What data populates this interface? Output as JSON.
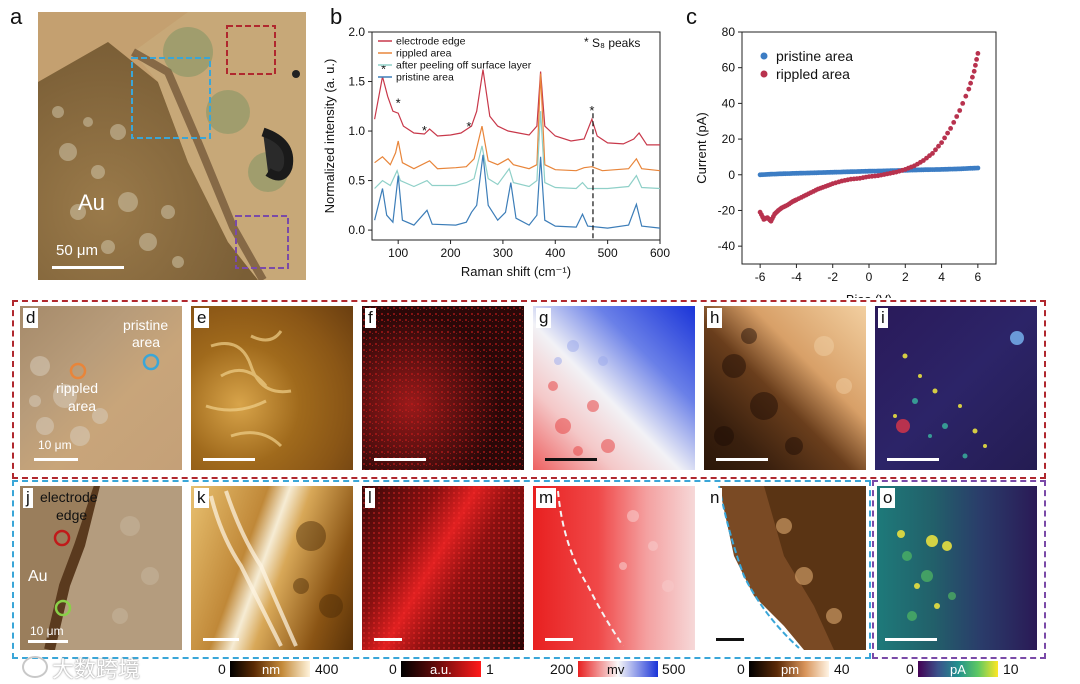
{
  "panel_letters": {
    "a": "a",
    "b": "b",
    "c": "c",
    "d": "d",
    "e": "e",
    "f": "f",
    "g": "g",
    "h": "h",
    "i": "i",
    "j": "j",
    "k": "k",
    "l": "l",
    "m": "m",
    "n": "n",
    "o": "o"
  },
  "panel_a": {
    "label_au": "Au",
    "scale": "50 μm"
  },
  "panel_d": {
    "pristine": "pristine",
    "area1": "area",
    "rippled": "rippled",
    "area2": "area",
    "scale": "10 μm"
  },
  "panel_j": {
    "electrode": "electrode",
    "edge": "edge",
    "label_au": "Au",
    "scale": "10 μm"
  },
  "colorbars": [
    {
      "min": "0",
      "unit": "nm",
      "max": "400"
    },
    {
      "min": "0",
      "unit": "a.u.",
      "max": "1"
    },
    {
      "min": "200",
      "unit": "mv",
      "max": "500"
    },
    {
      "min": "0",
      "unit": "pm",
      "max": "40"
    },
    {
      "min": "0",
      "unit": "pA",
      "max": "10"
    }
  ],
  "watermark": "大数跨境",
  "colors": {
    "red_box": "#b0282e",
    "cyan_box": "#3aa6d8",
    "purple_box": "#7a4aa8",
    "pristine": "#3c7dc4",
    "rippled": "#b8324e"
  },
  "chart_data": [
    {
      "type": "line",
      "panel": "b",
      "xlabel": "Raman shift (cm⁻¹)",
      "ylabel": "Normalized intensity (a. u.)",
      "xlim": [
        50,
        600
      ],
      "ylim": [
        -0.1,
        2.0
      ],
      "xticks": [
        "100",
        "200",
        "300",
        "400",
        "500",
        "600"
      ],
      "yticks": [
        "0.0",
        "0.5",
        "1.0",
        "1.5",
        "2.0"
      ],
      "legend_position": "top-left",
      "annotation": "S₈ peaks",
      "annotation_marker": "*",
      "series": [
        {
          "name": "electrode edge",
          "color": "#c8384a",
          "baseline": 0.98,
          "points": [
            [
              55,
              1.12
            ],
            [
              70,
              1.55
            ],
            [
              80,
              1.35
            ],
            [
              90,
              1.2
            ],
            [
              100,
              1.18
            ],
            [
              110,
              1.05
            ],
            [
              130,
              0.98
            ],
            [
              150,
              0.97
            ],
            [
              160,
              1.02
            ],
            [
              175,
              0.95
            ],
            [
              200,
              0.96
            ],
            [
              220,
              0.98
            ],
            [
              240,
              1.05
            ],
            [
              250,
              1.2
            ],
            [
              262,
              1.62
            ],
            [
              275,
              1.15
            ],
            [
              290,
              1.05
            ],
            [
              310,
              1.0
            ],
            [
              330,
              0.98
            ],
            [
              350,
              0.96
            ],
            [
              365,
              1.05
            ],
            [
              372,
              1.6
            ],
            [
              380,
              1.05
            ],
            [
              400,
              0.95
            ],
            [
              430,
              0.9
            ],
            [
              455,
              0.92
            ],
            [
              470,
              1.12
            ],
            [
              480,
              0.95
            ],
            [
              500,
              0.88
            ],
            [
              530,
              0.87
            ],
            [
              550,
              0.92
            ],
            [
              560,
              0.98
            ],
            [
              575,
              0.86
            ],
            [
              600,
              0.86
            ]
          ]
        },
        {
          "name": "rippled area",
          "color": "#e8853a",
          "baseline": 0.62,
          "points": [
            [
              55,
              0.68
            ],
            [
              70,
              0.74
            ],
            [
              85,
              0.66
            ],
            [
              95,
              0.78
            ],
            [
              100,
              0.9
            ],
            [
              108,
              0.68
            ],
            [
              130,
              0.62
            ],
            [
              160,
              0.7
            ],
            [
              175,
              0.62
            ],
            [
              210,
              0.63
            ],
            [
              230,
              0.64
            ],
            [
              245,
              0.72
            ],
            [
              260,
              1.05
            ],
            [
              272,
              0.7
            ],
            [
              290,
              0.66
            ],
            [
              310,
              0.72
            ],
            [
              320,
              0.66
            ],
            [
              350,
              0.62
            ],
            [
              365,
              0.66
            ],
            [
              372,
              1.58
            ],
            [
              380,
              0.66
            ],
            [
              400,
              0.61
            ],
            [
              440,
              0.6
            ],
            [
              455,
              0.63
            ],
            [
              470,
              0.64
            ],
            [
              490,
              0.6
            ],
            [
              540,
              0.62
            ],
            [
              555,
              0.72
            ],
            [
              565,
              0.62
            ],
            [
              600,
              0.6
            ]
          ]
        },
        {
          "name": "after peeling off surface layer",
          "color": "#8fd0c8",
          "baseline": 0.43,
          "points": [
            [
              55,
              0.42
            ],
            [
              70,
              0.5
            ],
            [
              85,
              0.45
            ],
            [
              98,
              0.6
            ],
            [
              104,
              0.5
            ],
            [
              130,
              0.44
            ],
            [
              155,
              0.5
            ],
            [
              165,
              0.45
            ],
            [
              210,
              0.45
            ],
            [
              230,
              0.48
            ],
            [
              245,
              0.52
            ],
            [
              260,
              0.85
            ],
            [
              272,
              0.52
            ],
            [
              290,
              0.46
            ],
            [
              312,
              0.62
            ],
            [
              320,
              0.48
            ],
            [
              350,
              0.44
            ],
            [
              365,
              0.5
            ],
            [
              372,
              1.2
            ],
            [
              380,
              0.48
            ],
            [
              400,
              0.43
            ],
            [
              440,
              0.42
            ],
            [
              452,
              0.48
            ],
            [
              462,
              0.42
            ],
            [
              500,
              0.42
            ],
            [
              540,
              0.44
            ],
            [
              555,
              0.55
            ],
            [
              565,
              0.43
            ],
            [
              600,
              0.42
            ]
          ]
        },
        {
          "name": "pristine area",
          "color": "#3c7db8",
          "baseline": 0.05,
          "points": [
            [
              55,
              0.1
            ],
            [
              70,
              0.42
            ],
            [
              78,
              0.15
            ],
            [
              90,
              0.08
            ],
            [
              100,
              0.55
            ],
            [
              108,
              0.1
            ],
            [
              130,
              0.05
            ],
            [
              155,
              0.2
            ],
            [
              165,
              0.06
            ],
            [
              210,
              0.05
            ],
            [
              230,
              0.08
            ],
            [
              240,
              0.18
            ],
            [
              250,
              0.25
            ],
            [
              262,
              0.76
            ],
            [
              272,
              0.25
            ],
            [
              290,
              0.1
            ],
            [
              305,
              0.18
            ],
            [
              315,
              0.48
            ],
            [
              325,
              0.12
            ],
            [
              350,
              0.05
            ],
            [
              365,
              0.15
            ],
            [
              372,
              0.74
            ],
            [
              380,
              0.1
            ],
            [
              400,
              0.04
            ],
            [
              440,
              0.03
            ],
            [
              452,
              0.16
            ],
            [
              462,
              0.04
            ],
            [
              500,
              0.02
            ],
            [
              540,
              0.05
            ],
            [
              555,
              0.26
            ],
            [
              565,
              0.04
            ],
            [
              600,
              0.02
            ]
          ]
        }
      ],
      "s8_markers": [
        [
          72,
          1.62
        ],
        [
          100,
          1.28
        ],
        [
          150,
          1.0
        ],
        [
          235,
          1.04
        ],
        [
          470,
          1.2
        ]
      ],
      "dashed_line_x": 472
    },
    {
      "type": "scatter",
      "panel": "c",
      "xlabel": "Bias (V)",
      "ylabel": "Current (pA)",
      "xlim": [
        -7,
        7
      ],
      "ylim": [
        -50,
        80
      ],
      "xticks": [
        "-6",
        "-4",
        "-2",
        "0",
        "2",
        "4",
        "6"
      ],
      "yticks": [
        "-40",
        "-20",
        "0",
        "20",
        "40",
        "60",
        "80"
      ],
      "legend_position": "top-left",
      "series": [
        {
          "name": "pristine area",
          "color": "#3c7dc4",
          "points": [
            [
              -6,
              0.0
            ],
            [
              -5,
              0.5
            ],
            [
              -4,
              0.8
            ],
            [
              -3,
              1.1
            ],
            [
              -2,
              1.4
            ],
            [
              -1,
              1.7
            ],
            [
              0,
              2.0
            ],
            [
              1,
              2.2
            ],
            [
              2,
              2.5
            ],
            [
              3,
              2.8
            ],
            [
              4,
              3.0
            ],
            [
              5,
              3.3
            ],
            [
              6,
              3.8
            ]
          ]
        },
        {
          "name": "rippled area",
          "color": "#b8324e",
          "points": [
            [
              -6,
              -21
            ],
            [
              -5.8,
              -25
            ],
            [
              -5.6,
              -24
            ],
            [
              -5.4,
              -26
            ],
            [
              -5.2,
              -22
            ],
            [
              -5,
              -20
            ],
            [
              -4.8,
              -18.5
            ],
            [
              -4.5,
              -17
            ],
            [
              -4.2,
              -15
            ],
            [
              -4,
              -14
            ],
            [
              -3.6,
              -12
            ],
            [
              -3.2,
              -10
            ],
            [
              -2.8,
              -8
            ],
            [
              -2.4,
              -6.5
            ],
            [
              -2,
              -5
            ],
            [
              -1.5,
              -3.5
            ],
            [
              -1,
              -2.5
            ],
            [
              -0.5,
              -2
            ],
            [
              0,
              -1
            ],
            [
              0.5,
              -0.5
            ],
            [
              1,
              0.5
            ],
            [
              1.5,
              1.5
            ],
            [
              2,
              3
            ],
            [
              2.5,
              5
            ],
            [
              3,
              8
            ],
            [
              3.5,
              12
            ],
            [
              4,
              18
            ],
            [
              4.5,
              26
            ],
            [
              5,
              36
            ],
            [
              5.5,
              48
            ],
            [
              5.8,
              58
            ],
            [
              6,
              68
            ]
          ]
        }
      ]
    }
  ]
}
